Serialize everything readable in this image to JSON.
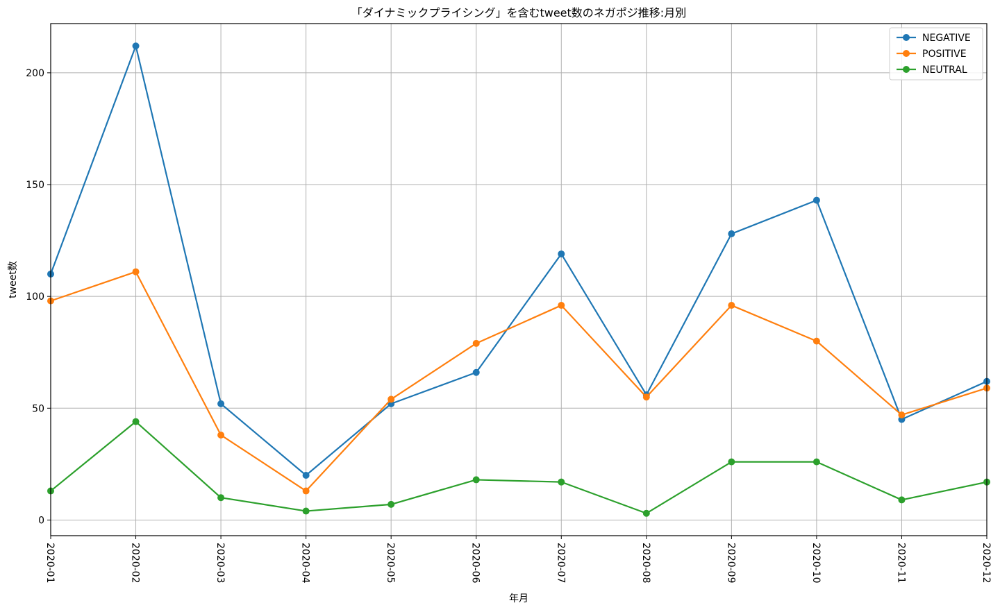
{
  "chart_data": {
    "type": "line",
    "title": "「ダイナミックプライシング」を含むtweet数のネガポジ推移:月別",
    "xlabel": "年月",
    "ylabel": "tweet数",
    "categories": [
      "2020-01",
      "2020-02",
      "2020-03",
      "2020-04",
      "2020-05",
      "2020-06",
      "2020-07",
      "2020-08",
      "2020-09",
      "2020-10",
      "2020-11",
      "2020-12"
    ],
    "ylim": [
      -7,
      222
    ],
    "yticks": [
      0,
      50,
      100,
      150,
      200
    ],
    "grid": true,
    "legend_position": "top-right",
    "series": [
      {
        "name": "NEGATIVE",
        "color": "#1f77b4",
        "values": [
          110,
          212,
          52,
          20,
          52,
          66,
          119,
          56,
          128,
          143,
          45,
          62
        ]
      },
      {
        "name": "POSITIVE",
        "color": "#ff7f0e",
        "values": [
          98,
          111,
          38,
          13,
          54,
          79,
          96,
          55,
          96,
          80,
          47,
          59
        ]
      },
      {
        "name": "NEUTRAL",
        "color": "#2ca02c",
        "values": [
          13,
          44,
          10,
          4,
          7,
          18,
          17,
          3,
          26,
          26,
          9,
          17
        ]
      }
    ]
  }
}
